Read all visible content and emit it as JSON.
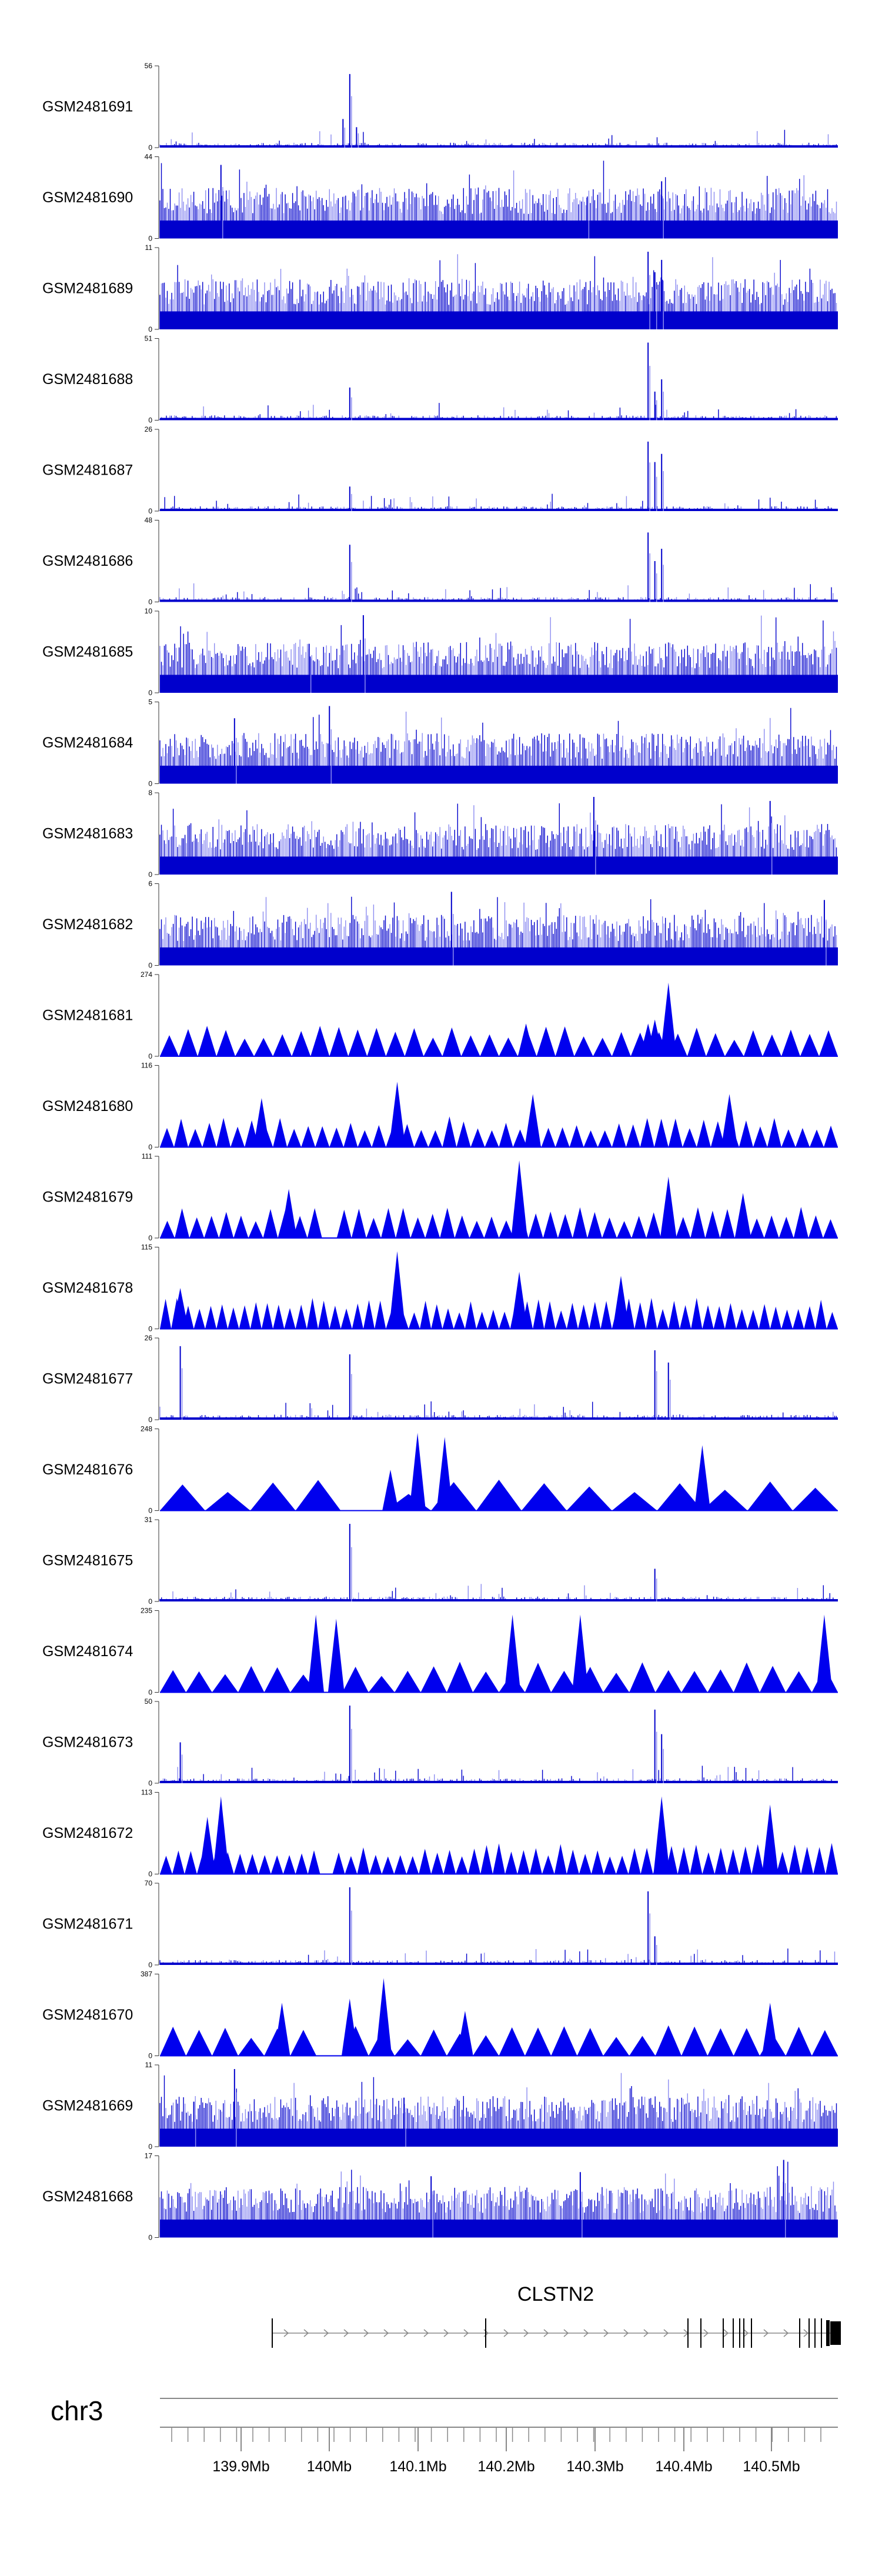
{
  "chart_data": {
    "type": "genome-browser-tracks",
    "chromosome": "chr3",
    "gene": "CLSTN2",
    "colors": {
      "signal": "#0000cc",
      "pale": "#8c8cf0",
      "triangle": "#0000ee",
      "axis": "#888888",
      "gene": "#000000"
    },
    "x_axis": {
      "tick_labels": [
        "139.9Mb",
        "140Mb",
        "140.1Mb",
        "140.2Mb",
        "140.3Mb",
        "140.4Mb",
        "140.5Mb"
      ]
    },
    "tracks": [
      {
        "name": "GSM2481691",
        "ymax": "56",
        "zero": "0",
        "style": "spiky",
        "peaks": [
          {
            "pos": 0.28,
            "h": 0.9
          },
          {
            "pos": 0.27,
            "h": 0.35
          },
          {
            "pos": 0.29,
            "h": 0.25
          }
        ]
      },
      {
        "name": "GSM2481690",
        "ymax": "44",
        "zero": "0",
        "style": "dense",
        "peaks": [
          {
            "pos": 0.09,
            "h": 0.9
          },
          {
            "pos": 0.74,
            "h": 0.7
          },
          {
            "pos": 0.63,
            "h": 0.5
          }
        ]
      },
      {
        "name": "GSM2481689",
        "ymax": "11",
        "zero": "0",
        "style": "dense",
        "peaks": [
          {
            "pos": 0.72,
            "h": 0.95
          },
          {
            "pos": 0.74,
            "h": 0.85
          },
          {
            "pos": 0.73,
            "h": 0.7
          }
        ]
      },
      {
        "name": "GSM2481688",
        "ymax": "51",
        "zero": "0",
        "style": "spiky",
        "peaks": [
          {
            "pos": 0.72,
            "h": 0.95
          },
          {
            "pos": 0.74,
            "h": 0.5
          },
          {
            "pos": 0.28,
            "h": 0.4
          },
          {
            "pos": 0.73,
            "h": 0.35
          }
        ]
      },
      {
        "name": "GSM2481687",
        "ymax": "26",
        "zero": "0",
        "style": "spiky",
        "peaks": [
          {
            "pos": 0.72,
            "h": 0.85
          },
          {
            "pos": 0.74,
            "h": 0.7
          },
          {
            "pos": 0.73,
            "h": 0.6
          },
          {
            "pos": 0.28,
            "h": 0.3
          }
        ]
      },
      {
        "name": "GSM2481686",
        "ymax": "48",
        "zero": "0",
        "style": "spiky",
        "peaks": [
          {
            "pos": 0.72,
            "h": 0.85
          },
          {
            "pos": 0.74,
            "h": 0.65
          },
          {
            "pos": 0.28,
            "h": 0.7
          },
          {
            "pos": 0.73,
            "h": 0.5
          }
        ]
      },
      {
        "name": "GSM2481685",
        "ymax": "10",
        "zero": "0",
        "style": "dense",
        "peaks": [
          {
            "pos": 0.3,
            "h": 0.95
          },
          {
            "pos": 0.22,
            "h": 0.6
          }
        ]
      },
      {
        "name": "GSM2481684",
        "ymax": "5",
        "zero": "0",
        "style": "dense",
        "peaks": [
          {
            "pos": 0.25,
            "h": 0.95
          },
          {
            "pos": 0.11,
            "h": 0.8
          }
        ]
      },
      {
        "name": "GSM2481683",
        "ymax": "8",
        "zero": "0",
        "style": "dense",
        "peaks": [
          {
            "pos": 0.64,
            "h": 0.95
          },
          {
            "pos": 0.9,
            "h": 0.9
          }
        ]
      },
      {
        "name": "GSM2481682",
        "ymax": "6",
        "zero": "0",
        "style": "dense",
        "peaks": [
          {
            "pos": 0.43,
            "h": 0.9
          },
          {
            "pos": 0.98,
            "h": 0.8
          }
        ]
      },
      {
        "name": "GSM2481681",
        "ymax": "274",
        "zero": "0",
        "style": "triangles",
        "count": 36,
        "gaps": [
          [
            0.24,
            0.26
          ]
        ],
        "peaks": [
          {
            "pos": 0.75,
            "h": 0.9
          },
          {
            "pos": 0.54,
            "h": 0.4
          },
          {
            "pos": 0.73,
            "h": 0.45
          },
          {
            "pos": 0.72,
            "h": 0.4
          }
        ]
      },
      {
        "name": "GSM2481680",
        "ymax": "116",
        "zero": "0",
        "style": "triangles",
        "count": 48,
        "gaps": [
          [
            0.24,
            0.25
          ]
        ],
        "peaks": [
          {
            "pos": 0.35,
            "h": 0.8
          },
          {
            "pos": 0.55,
            "h": 0.65
          },
          {
            "pos": 0.84,
            "h": 0.65
          },
          {
            "pos": 0.15,
            "h": 0.6
          }
        ]
      },
      {
        "name": "GSM2481679",
        "ymax": "111",
        "zero": "0",
        "style": "triangles",
        "count": 46,
        "gaps": [
          [
            0.24,
            0.25
          ]
        ],
        "peaks": [
          {
            "pos": 0.53,
            "h": 0.95
          },
          {
            "pos": 0.75,
            "h": 0.75
          },
          {
            "pos": 0.19,
            "h": 0.6
          },
          {
            "pos": 0.86,
            "h": 0.55
          }
        ]
      },
      {
        "name": "GSM2481678",
        "ymax": "115",
        "zero": "0",
        "style": "triangles",
        "count": 60,
        "peaks": [
          {
            "pos": 0.35,
            "h": 0.95
          },
          {
            "pos": 0.53,
            "h": 0.7
          },
          {
            "pos": 0.68,
            "h": 0.65
          },
          {
            "pos": 0.03,
            "h": 0.5
          }
        ]
      },
      {
        "name": "GSM2481677",
        "ymax": "26",
        "zero": "0",
        "style": "spiky",
        "peaks": [
          {
            "pos": 0.03,
            "h": 0.9
          },
          {
            "pos": 0.73,
            "h": 0.85
          },
          {
            "pos": 0.28,
            "h": 0.8
          },
          {
            "pos": 0.75,
            "h": 0.7
          }
        ]
      },
      {
        "name": "GSM2481676",
        "ymax": "248",
        "zero": "0",
        "style": "triangles",
        "count": 15,
        "gaps": [
          [
            0.24,
            0.3
          ]
        ],
        "peaks": [
          {
            "pos": 0.38,
            "h": 0.95
          },
          {
            "pos": 0.42,
            "h": 0.9
          },
          {
            "pos": 0.8,
            "h": 0.8
          },
          {
            "pos": 0.34,
            "h": 0.5
          }
        ]
      },
      {
        "name": "GSM2481675",
        "ymax": "31",
        "zero": "0",
        "style": "spiky",
        "peaks": [
          {
            "pos": 0.28,
            "h": 0.95
          },
          {
            "pos": 0.73,
            "h": 0.4
          }
        ]
      },
      {
        "name": "GSM2481674",
        "ymax": "235",
        "zero": "0",
        "style": "triangles",
        "count": 26,
        "gaps": [
          [
            0.24,
            0.26
          ]
        ],
        "peaks": [
          {
            "pos": 0.26,
            "h": 0.9
          },
          {
            "pos": 0.23,
            "h": 0.95
          },
          {
            "pos": 0.98,
            "h": 0.95
          },
          {
            "pos": 0.52,
            "h": 0.95
          },
          {
            "pos": 0.62,
            "h": 0.95
          }
        ]
      },
      {
        "name": "GSM2481673",
        "ymax": "50",
        "zero": "0",
        "style": "spiky",
        "peaks": [
          {
            "pos": 0.73,
            "h": 0.9
          },
          {
            "pos": 0.28,
            "h": 0.95
          },
          {
            "pos": 0.74,
            "h": 0.6
          },
          {
            "pos": 0.03,
            "h": 0.5
          }
        ]
      },
      {
        "name": "GSM2481672",
        "ymax": "113",
        "zero": "0",
        "style": "triangles",
        "count": 55,
        "gaps": [
          [
            0.24,
            0.25
          ]
        ],
        "peaks": [
          {
            "pos": 0.09,
            "h": 0.95
          },
          {
            "pos": 0.74,
            "h": 0.95
          },
          {
            "pos": 0.9,
            "h": 0.85
          },
          {
            "pos": 0.07,
            "h": 0.7
          }
        ]
      },
      {
        "name": "GSM2481671",
        "ymax": "70",
        "zero": "0",
        "style": "spiky",
        "peaks": [
          {
            "pos": 0.28,
            "h": 0.95
          },
          {
            "pos": 0.72,
            "h": 0.9
          },
          {
            "pos": 0.73,
            "h": 0.35
          }
        ]
      },
      {
        "name": "GSM2481670",
        "ymax": "387",
        "zero": "0",
        "style": "triangles",
        "count": 26,
        "gaps": [
          [
            0.24,
            0.26
          ]
        ],
        "peaks": [
          {
            "pos": 0.33,
            "h": 0.95
          },
          {
            "pos": 0.28,
            "h": 0.7
          },
          {
            "pos": 0.18,
            "h": 0.65
          },
          {
            "pos": 0.9,
            "h": 0.65
          },
          {
            "pos": 0.45,
            "h": 0.55
          }
        ]
      },
      {
        "name": "GSM2481669",
        "ymax": "11",
        "zero": "0",
        "style": "dense",
        "peaks": [
          {
            "pos": 0.11,
            "h": 0.95
          },
          {
            "pos": 0.36,
            "h": 0.6
          },
          {
            "pos": 0.05,
            "h": 0.55
          }
        ]
      },
      {
        "name": "GSM2481668",
        "ymax": "17",
        "zero": "0",
        "style": "dense",
        "peaks": [
          {
            "pos": 0.92,
            "h": 0.95
          },
          {
            "pos": 0.4,
            "h": 0.75
          },
          {
            "pos": 0.62,
            "h": 0.8
          }
        ]
      }
    ]
  }
}
